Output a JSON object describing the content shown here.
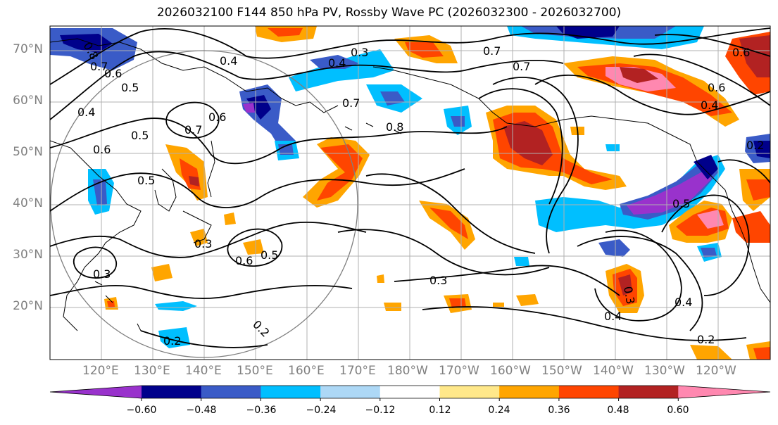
{
  "title": "2026032100 F144 850 hPa PV, Rossby Wave PC (2026032300 - 2026032700)",
  "lat_labels": [
    "70°N",
    "60°N",
    "50°N",
    "40°N",
    "30°N",
    "20°N"
  ],
  "lon_labels": [
    "120°E",
    "130°E",
    "140°E",
    "150°E",
    "160°E",
    "170°E",
    "180°W",
    "170°W",
    "160°W",
    "150°W",
    "140°W",
    "130°W",
    "120°W"
  ],
  "colorbar": {
    "colors": [
      "#9932cc",
      "#00008b",
      "#3a5bc7",
      "#00bfff",
      "#add8f6",
      "#ffffff",
      "#ffe88a",
      "#ffa500",
      "#ff4500",
      "#b22222",
      "#ff88b0"
    ],
    "tick_labels": [
      "−0.60",
      "−0.48",
      "−0.36",
      "−0.24",
      "−0.12",
      "0.12",
      "0.24",
      "0.36",
      "0.48",
      "0.60"
    ]
  },
  "contour_labels": [
    "0.8",
    "0.7",
    "0.6",
    "0.5",
    "0.4",
    "0.5",
    "0.6",
    "0.5",
    "0.7",
    "0.6",
    "0.4",
    "0.3",
    "0.7",
    "0.8",
    "0.7",
    "0.4",
    "0.3",
    "0.6",
    "0.5",
    "0.3",
    "0.3",
    "0.2",
    "0.2",
    "0.4",
    "0.4",
    "0.2",
    "0.5",
    "0.6",
    "0.4",
    "0.6",
    "0.7",
    "0.2",
    "0.3"
  ]
}
